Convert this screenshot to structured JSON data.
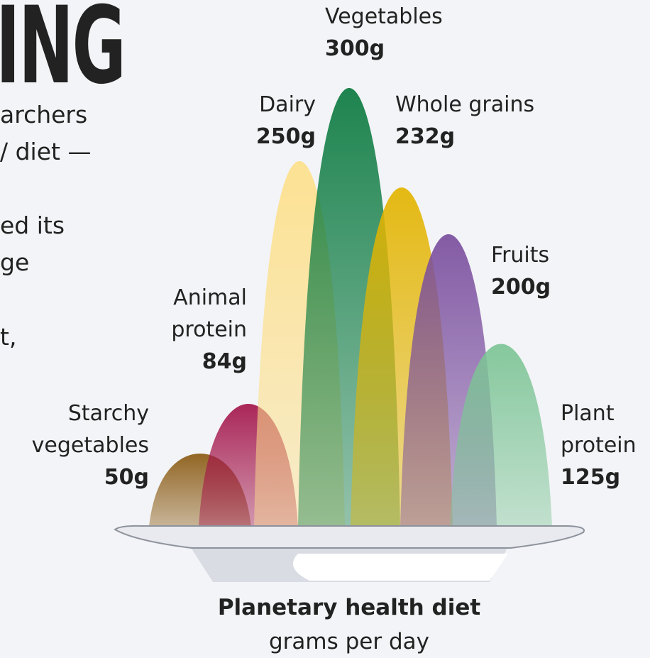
{
  "side_text": [
    "ING",
    "archers",
    "/ diet —",
    "ed its",
    "ge",
    "t,"
  ],
  "chart_data": {
    "type": "peaks",
    "title": "Planetary health diet",
    "subtitle": "grams per day",
    "categories": [
      "Starchy vegetables",
      "Animal protein",
      "Dairy",
      "Vegetables",
      "Whole grains",
      "Fruits",
      "Plant protein"
    ],
    "values": [
      50,
      84,
      250,
      300,
      232,
      200,
      125
    ],
    "value_labels": [
      "50g",
      "84g",
      "250g",
      "300g",
      "232g",
      "200g",
      "125g"
    ],
    "colors": [
      "#8a5a12",
      "#a3154a",
      "#fde08a",
      "#0b7a40",
      "#e3b400",
      "#7a4e9e",
      "#7cc495"
    ]
  }
}
